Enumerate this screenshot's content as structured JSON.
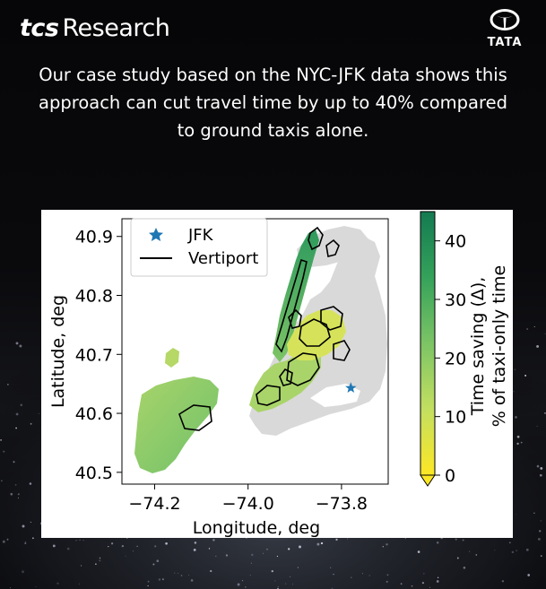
{
  "branding": {
    "logo_tcs": "tcs",
    "logo_research": "Research",
    "tata_wordmark": "TATA"
  },
  "headline": "Our case study based on the NYC-JFK data shows this approach can cut travel time by up to 40% compared to ground taxis alone.",
  "colors": {
    "background": "#000000",
    "land": "#d9d9d9",
    "vertiport_outline": "#000000",
    "jfk_marker": "#1f77b4",
    "colormap_low": "#fde725",
    "colormap_high": "#1a7a4e"
  },
  "chart_data": {
    "type": "heatmap",
    "title": "",
    "xlabel": "Longitude, deg",
    "ylabel": "Latitude, deg",
    "xlim": [
      -74.27,
      -73.7
    ],
    "ylim": [
      40.48,
      40.93
    ],
    "xticks": [
      -74.2,
      -74.0,
      -73.8
    ],
    "xtick_labels": [
      "−74.2",
      "−74.0",
      "−73.8"
    ],
    "yticks": [
      40.5,
      40.6,
      40.7,
      40.8,
      40.9
    ],
    "ytick_labels": [
      "40.5",
      "40.6",
      "40.7",
      "40.8",
      "40.9"
    ],
    "grid": false,
    "legend": {
      "placement": "top-left",
      "entries": [
        {
          "label": "JFK",
          "marker": "star"
        },
        {
          "label": "Vertiport",
          "marker": "line"
        }
      ]
    },
    "jfk_point": {
      "lon": -73.78,
      "lat": 40.643
    },
    "colorbar": {
      "label_line1": "Time saving (Δ),",
      "label_line2": "% of taxi-only time",
      "min": 0,
      "max": 45,
      "ticks": [
        0,
        10,
        20,
        30,
        40
      ],
      "tick_labels": [
        "0",
        "10",
        "20",
        "30",
        "40"
      ],
      "extend": "min"
    }
  }
}
